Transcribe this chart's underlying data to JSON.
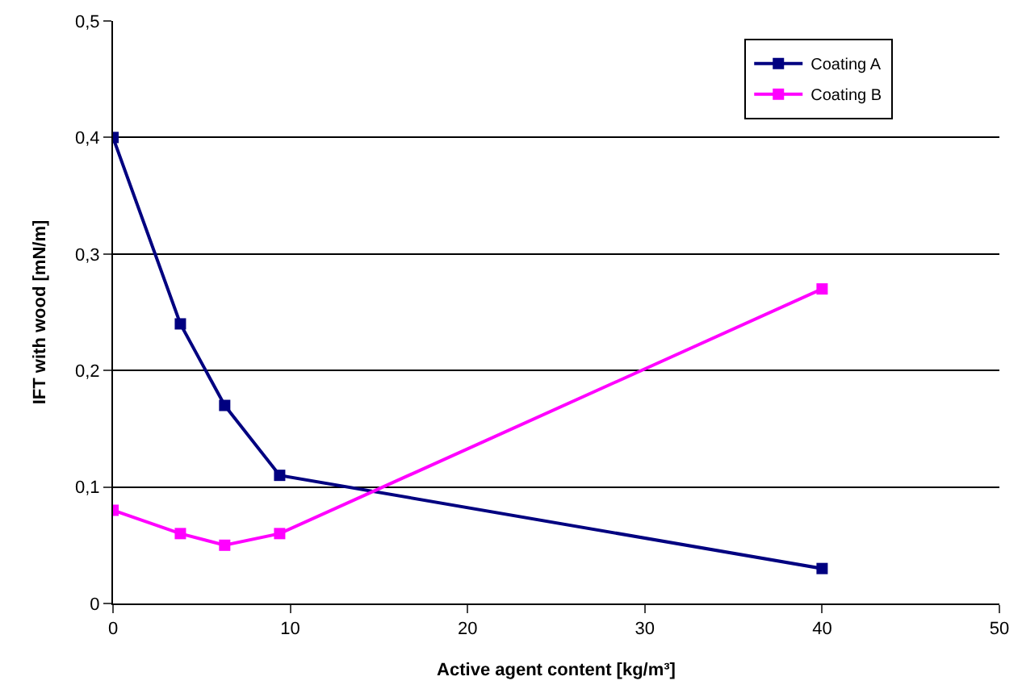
{
  "chart_data": {
    "type": "line",
    "xlabel": "Active agent content [kg/m³]",
    "ylabel": "IFT with wood [mN/m]",
    "x": [
      0,
      3.8,
      6.3,
      9.4,
      40
    ],
    "series": [
      {
        "name": "Coating A",
        "color": "#000080",
        "values": [
          0.4,
          0.24,
          0.17,
          0.11,
          0.03
        ]
      },
      {
        "name": "Coating B",
        "color": "#ff00ff",
        "values": [
          0.08,
          0.06,
          0.05,
          0.06,
          0.27
        ]
      }
    ],
    "xlim": [
      0,
      50
    ],
    "xticks": [
      0,
      10,
      20,
      30,
      40,
      50
    ],
    "ylim": [
      0,
      0.5
    ],
    "yticks": [
      0,
      {
        "value": 0.1,
        "label": "0,1"
      },
      {
        "value": 0.2,
        "label": "0,2"
      },
      {
        "value": 0.3,
        "label": "0,3"
      },
      {
        "value": 0.4,
        "label": "0,4"
      },
      {
        "value": 0.5,
        "label": "0,5"
      }
    ],
    "grid": "y",
    "legend": "top right",
    "marker": "square",
    "line_style": "solid"
  }
}
